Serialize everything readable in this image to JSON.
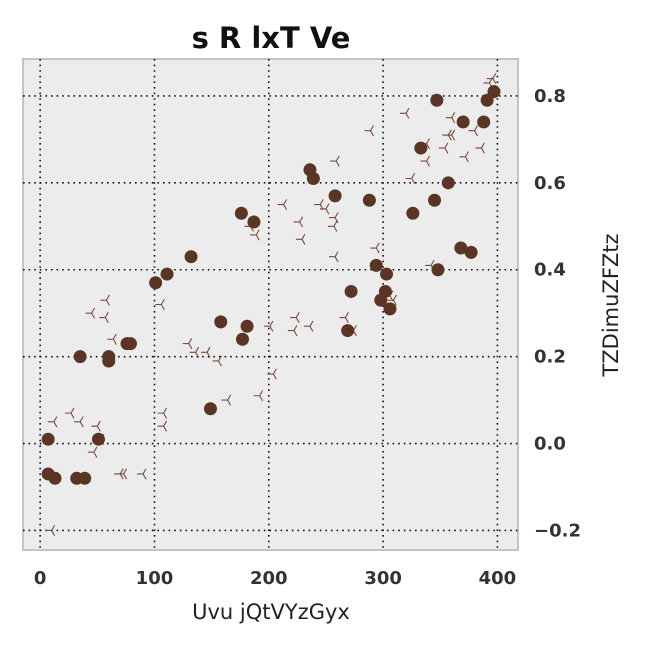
{
  "chart_data": {
    "type": "scatter",
    "title": "s R lxT Ve",
    "xlabel": "Uvu jQtVYzGyx",
    "ylabel": "TZDimuZFZtz",
    "xlim": [
      -15,
      418
    ],
    "ylim": [
      -0.245,
      0.885
    ],
    "x_ticks": [
      0,
      100,
      200,
      300,
      400
    ],
    "y_ticks": [
      -0.2,
      0.0,
      0.2,
      0.4,
      0.6,
      0.8
    ],
    "x_tick_labels": [
      "0",
      "100",
      "200",
      "300",
      "400"
    ],
    "y_tick_labels": [
      "−0.2",
      "0.0",
      "0.2",
      "0.4",
      "0.6",
      "0.8"
    ],
    "grid": true,
    "y_axis_position": "right",
    "background": "#ececec",
    "series": [
      {
        "marker": "circle",
        "color": "#5a3424",
        "points": [
          [
            7,
            0.01
          ],
          [
            7,
            -0.07
          ],
          [
            13,
            -0.08
          ],
          [
            32,
            -0.08
          ],
          [
            39,
            -0.08
          ],
          [
            35,
            0.2
          ],
          [
            51,
            0.01
          ],
          [
            60,
            0.2
          ],
          [
            60,
            0.19
          ],
          [
            76,
            0.23
          ],
          [
            79,
            0.23
          ],
          [
            101,
            0.37
          ],
          [
            111,
            0.39
          ],
          [
            132,
            0.43
          ],
          [
            149,
            0.08
          ],
          [
            158,
            0.28
          ],
          [
            176,
            0.53
          ],
          [
            177,
            0.24
          ],
          [
            181,
            0.27
          ],
          [
            187,
            0.51
          ],
          [
            236,
            0.63
          ],
          [
            239,
            0.61
          ],
          [
            258,
            0.57
          ],
          [
            269,
            0.26
          ],
          [
            272,
            0.35
          ],
          [
            288,
            0.56
          ],
          [
            294,
            0.41
          ],
          [
            298,
            0.33
          ],
          [
            302,
            0.35
          ],
          [
            303,
            0.39
          ],
          [
            306,
            0.31
          ],
          [
            326,
            0.53
          ],
          [
            333,
            0.68
          ],
          [
            345,
            0.56
          ],
          [
            347,
            0.79
          ],
          [
            348,
            0.4
          ],
          [
            357,
            0.6
          ],
          [
            368,
            0.45
          ],
          [
            370,
            0.74
          ],
          [
            377,
            0.44
          ],
          [
            388,
            0.74
          ],
          [
            391,
            0.79
          ],
          [
            397,
            0.81
          ]
        ]
      },
      {
        "marker": "tri_left",
        "color": "#7a4a3c",
        "points": [
          [
            10,
            -0.2
          ],
          [
            12,
            0.05
          ],
          [
            27,
            0.07
          ],
          [
            35,
            0.05
          ],
          [
            45,
            0.3
          ],
          [
            47,
            -0.02
          ],
          [
            50,
            0.04
          ],
          [
            53,
            0.01
          ],
          [
            57,
            0.29
          ],
          [
            58,
            0.33
          ],
          [
            64,
            0.24
          ],
          [
            70,
            -0.07
          ],
          [
            73,
            -0.07
          ],
          [
            90,
            -0.07
          ],
          [
            106,
            0.32
          ],
          [
            108,
            0.04
          ],
          [
            108,
            0.07
          ],
          [
            130,
            0.23
          ],
          [
            136,
            0.21
          ],
          [
            146,
            0.21
          ],
          [
            156,
            0.19
          ],
          [
            164,
            0.1
          ],
          [
            184,
            0.5
          ],
          [
            189,
            0.48
          ],
          [
            192,
            0.11
          ],
          [
            201,
            0.27
          ],
          [
            204,
            0.16
          ],
          [
            213,
            0.55
          ],
          [
            222,
            0.26
          ],
          [
            224,
            0.29
          ],
          [
            227,
            0.51
          ],
          [
            229,
            0.47
          ],
          [
            236,
            0.27
          ],
          [
            245,
            0.55
          ],
          [
            250,
            0.54
          ],
          [
            257,
            0.5
          ],
          [
            258,
            0.52
          ],
          [
            258,
            0.43
          ],
          [
            259,
            0.65
          ],
          [
            267,
            0.29
          ],
          [
            274,
            0.26
          ],
          [
            289,
            0.72
          ],
          [
            294,
            0.45
          ],
          [
            299,
            0.34
          ],
          [
            306,
            0.34
          ],
          [
            309,
            0.33
          ],
          [
            320,
            0.76
          ],
          [
            325,
            0.61
          ],
          [
            338,
            0.65
          ],
          [
            338,
            0.69
          ],
          [
            342,
            0.41
          ],
          [
            354,
            0.68
          ],
          [
            357,
            0.71
          ],
          [
            360,
            0.75
          ],
          [
            360,
            0.71
          ],
          [
            372,
            0.66
          ],
          [
            380,
            0.72
          ],
          [
            386,
            0.68
          ],
          [
            393,
            0.83
          ],
          [
            396,
            0.84
          ]
        ]
      }
    ]
  }
}
